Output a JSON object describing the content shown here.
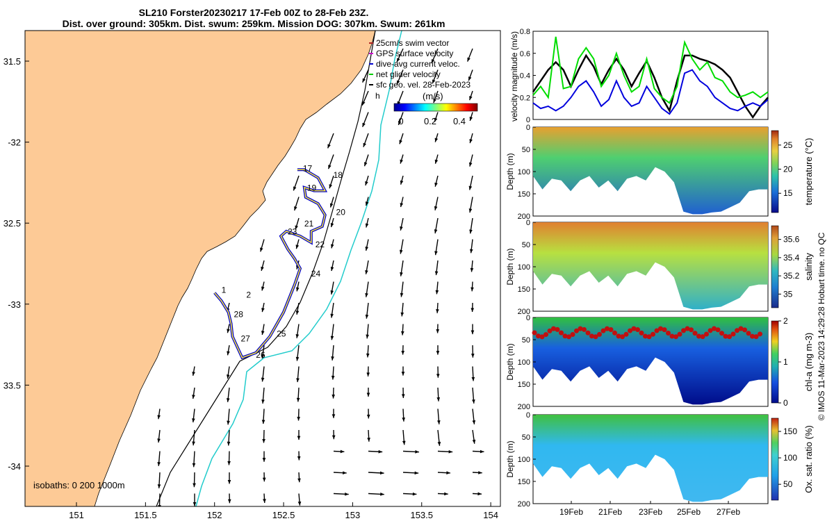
{
  "title": {
    "line1": "SL210 Forster20230217 17-Feb 00Z to 28-Feb 23Z.",
    "line2": "Dist. over ground: 305km. Dist. swum: 259km. Mission DOG: 307km. Swum: 261km"
  },
  "map": {
    "lon_ticks": [
      "151",
      "151.5",
      "152",
      "152.5",
      "153",
      "153.5",
      "154"
    ],
    "lat_ticks": [
      "31.5",
      "-32",
      "32.5",
      "-33",
      "33.5",
      "-34"
    ],
    "legend": [
      {
        "label": "25cm/s swim vector",
        "color": "#b22222"
      },
      {
        "label": "GPS surface velocity",
        "color": "#cc00cc"
      },
      {
        "label": "dive-avg current veloc.",
        "color": "#0000cc"
      },
      {
        "label": "net glider velocity",
        "color": "#00cc00"
      },
      {
        "label": "sfc geo. vel. 28-Feb-2023",
        "color": "#000000"
      }
    ],
    "legend_tail": "h",
    "colorbar_title": "(m/s)",
    "colorbar_ticks": [
      "0",
      "0.2",
      "0.4"
    ],
    "isobaths_label": "isobaths: 0   200  1000m",
    "day_labels": [
      {
        "text": "1",
        "lon": 152.05,
        "lat": -32.93
      },
      {
        "text": "2",
        "lon": 152.23,
        "lat": -32.96
      },
      {
        "text": "28",
        "lon": 152.14,
        "lat": -33.08
      },
      {
        "text": "27",
        "lon": 152.19,
        "lat": -33.23
      },
      {
        "text": "26",
        "lon": 152.3,
        "lat": -33.33
      },
      {
        "text": "25",
        "lon": 152.45,
        "lat": -33.2
      },
      {
        "text": "24",
        "lon": 152.7,
        "lat": -32.83
      },
      {
        "text": "23",
        "lon": 152.53,
        "lat": -32.57
      },
      {
        "text": "22",
        "lon": 152.73,
        "lat": -32.65
      },
      {
        "text": "21",
        "lon": 152.65,
        "lat": -32.52
      },
      {
        "text": "20",
        "lon": 152.88,
        "lat": -32.45
      },
      {
        "text": "19",
        "lon": 152.67,
        "lat": -32.3
      },
      {
        "text": "18",
        "lon": 152.86,
        "lat": -32.22
      },
      {
        "text": "17",
        "lon": 152.64,
        "lat": -32.18
      }
    ]
  },
  "velocity_panel": {
    "ylabel": "velocity magnitude (m/s)",
    "yticks": [
      "0",
      "0.2",
      "0.4",
      "0.6",
      "0.8"
    ],
    "chart_data": {
      "type": "line",
      "series": [
        {
          "name": "sfc geo. vel.",
          "color": "#000000",
          "values": [
            0.25,
            0.35,
            0.45,
            0.52,
            0.45,
            0.3,
            0.45,
            0.58,
            0.48,
            0.32,
            0.45,
            0.55,
            0.45,
            0.3,
            0.42,
            0.53,
            0.38,
            0.2,
            0.08,
            0.35,
            0.58,
            0.58,
            0.55,
            0.53,
            0.5,
            0.45,
            0.38,
            0.25,
            0.12,
            0.02,
            0.12,
            0.2
          ]
        },
        {
          "name": "net glider velocity",
          "color": "#00dd00",
          "values": [
            0.22,
            0.3,
            0.2,
            0.75,
            0.28,
            0.3,
            0.55,
            0.65,
            0.55,
            0.3,
            0.4,
            0.6,
            0.4,
            0.25,
            0.3,
            0.55,
            0.28,
            0.2,
            0.15,
            0.3,
            0.7,
            0.55,
            0.45,
            0.52,
            0.38,
            0.35,
            0.25,
            0.2,
            0.22,
            0.25,
            0.2,
            0.25
          ]
        },
        {
          "name": "dive-avg current",
          "color": "#0000dd",
          "values": [
            0.15,
            0.1,
            0.12,
            0.08,
            0.12,
            0.2,
            0.3,
            0.35,
            0.25,
            0.12,
            0.18,
            0.35,
            0.2,
            0.12,
            0.15,
            0.3,
            0.2,
            0.1,
            0.05,
            0.15,
            0.42,
            0.45,
            0.35,
            0.3,
            0.2,
            0.15,
            0.1,
            0.08,
            0.12,
            0.15,
            0.12,
            0.18
          ]
        }
      ]
    }
  },
  "profiles": [
    {
      "label": "temperature (°C)",
      "ticks": [
        "25",
        "20",
        "15"
      ],
      "tick_vals": [
        25,
        20,
        15
      ],
      "vmin": 11,
      "vmax": 28
    },
    {
      "label": "salinity",
      "ticks": [
        "35.6",
        "35.4",
        "35.2",
        "35"
      ],
      "tick_vals": [
        35.6,
        35.4,
        35.2,
        35.0
      ],
      "vmin": 34.85,
      "vmax": 35.75
    },
    {
      "label": "chl-a (mg m-3)",
      "ticks": [
        "2",
        "1",
        "0"
      ],
      "tick_vals": [
        2,
        1,
        0
      ],
      "vmin": 0,
      "vmax": 2
    },
    {
      "label": "Ox. sat. ratio (%)",
      "ticks": [
        "150",
        "100",
        "50"
      ],
      "tick_vals": [
        150,
        100,
        50
      ],
      "vmin": 20,
      "vmax": 175
    }
  ],
  "depth_label": "Depth (m)",
  "depth_ticks": [
    "0",
    "50",
    "100",
    "150",
    "200"
  ],
  "time_ticks": [
    "19Feb",
    "21Feb",
    "23Feb",
    "25Feb",
    "27Feb"
  ],
  "footer": "© IMOS 11-Mar-2023 14:29:28 Hobart time. no QC"
}
